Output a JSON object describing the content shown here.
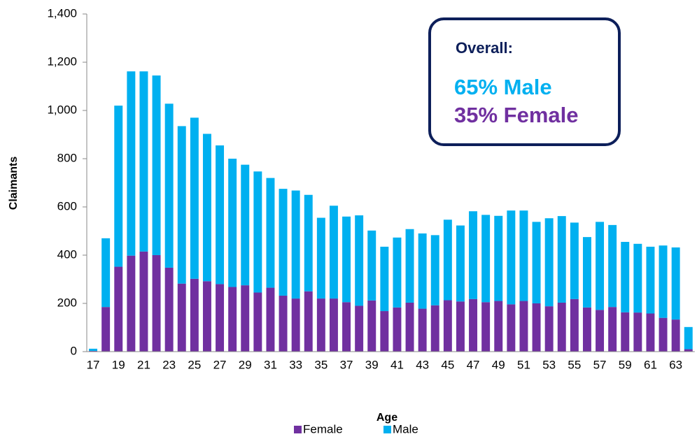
{
  "chart_data": {
    "type": "stacked_bar",
    "x_label": "Age",
    "y_label": "Claimants",
    "categories": [
      "17",
      null,
      "19",
      null,
      "21",
      null,
      "23",
      null,
      "25",
      null,
      "27",
      null,
      "29",
      null,
      "31",
      null,
      "33",
      null,
      "35",
      null,
      "37",
      null,
      "39",
      null,
      "41",
      null,
      "43",
      null,
      "45",
      null,
      "47",
      null,
      "49",
      null,
      "51",
      null,
      "53",
      null,
      "55",
      null,
      "57",
      null,
      "59",
      null,
      "61",
      null,
      "63",
      null
    ],
    "series": [
      {
        "name": "Female",
        "color": "#7030a0",
        "values": [
          3,
          185,
          352,
          398,
          415,
          400,
          348,
          282,
          302,
          292,
          280,
          268,
          275,
          245,
          265,
          232,
          220,
          250,
          220,
          220,
          205,
          190,
          212,
          168,
          183,
          203,
          178,
          192,
          213,
          208,
          218,
          205,
          210,
          196,
          210,
          200,
          188,
          203,
          218,
          183,
          173,
          185,
          163,
          162,
          158,
          140,
          133,
          10
        ]
      },
      {
        "name": "Male",
        "color": "#00b0f0",
        "values": [
          9,
          285,
          668,
          764,
          747,
          745,
          680,
          653,
          668,
          611,
          575,
          532,
          500,
          502,
          455,
          443,
          448,
          400,
          335,
          385,
          355,
          375,
          290,
          267,
          290,
          305,
          312,
          291,
          334,
          315,
          364,
          362,
          353,
          389,
          375,
          338,
          365,
          359,
          317,
          292,
          365,
          340,
          292,
          285,
          277,
          300,
          299,
          92
        ]
      }
    ],
    "ylim": [
      0,
      1400
    ],
    "yticks": [
      0,
      200,
      400,
      600,
      800,
      {
        "value": 1000,
        "label": "1,000"
      },
      {
        "value": 1200,
        "label": "1,200"
      },
      {
        "value": 1400,
        "label": "1,400"
      }
    ],
    "annotations": [
      "Overall:",
      "65% Male",
      "35% Female"
    ],
    "legend": "bottom"
  }
}
